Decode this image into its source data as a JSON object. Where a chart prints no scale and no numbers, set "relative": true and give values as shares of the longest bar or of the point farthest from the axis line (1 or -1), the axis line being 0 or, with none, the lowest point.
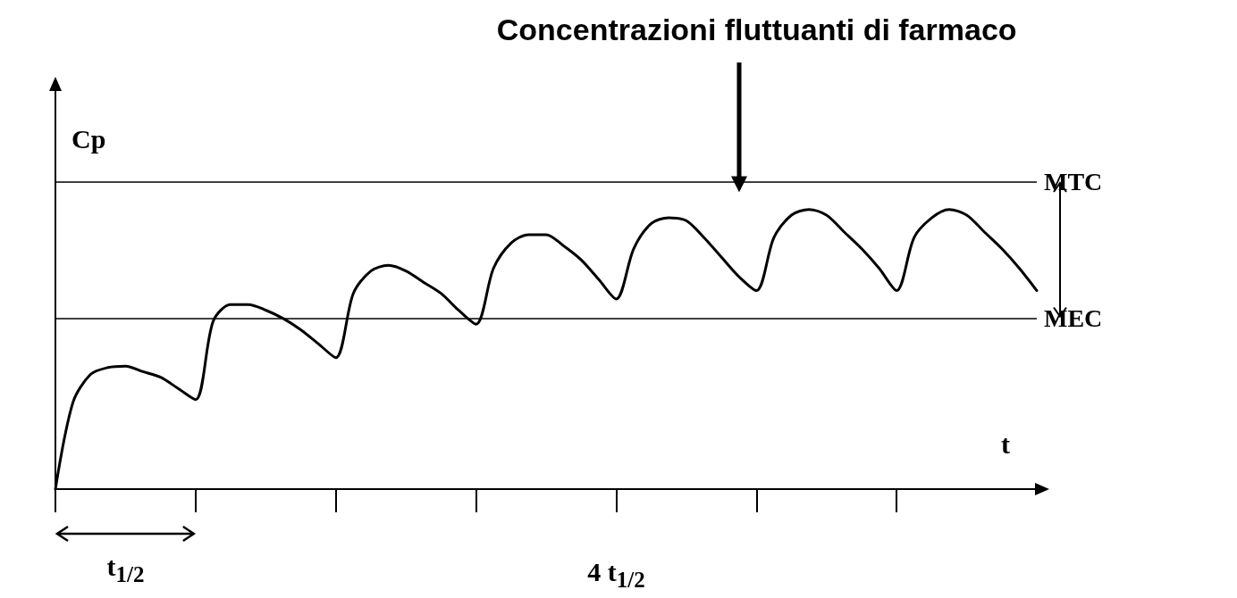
{
  "chart_data": {
    "type": "line",
    "relative": true,
    "xlabel": "t",
    "ylabel": "Cp",
    "color": "#000000",
    "marker": "none",
    "grid": false,
    "categories": [
      null,
      null,
      null,
      null,
      null,
      null,
      null,
      null,
      null,
      null,
      null,
      null,
      null,
      null,
      null,
      null,
      null,
      null,
      null,
      null,
      null,
      null,
      null,
      null,
      null,
      null,
      null,
      null,
      null,
      null,
      null,
      null,
      null,
      null,
      null,
      null,
      null,
      null,
      null,
      null,
      null,
      null,
      null,
      null,
      null,
      null,
      null,
      null,
      null,
      null,
      null,
      null,
      null,
      null,
      null,
      null,
      null
    ],
    "values": [
      0,
      0.31,
      0.41,
      0.435,
      0.44,
      0.42,
      0.4,
      0.36,
      0.32,
      0.6,
      0.66,
      0.66,
      0.64,
      0.61,
      0.57,
      0.52,
      0.47,
      0.7,
      0.78,
      0.8,
      0.78,
      0.74,
      0.7,
      0.64,
      0.59,
      0.79,
      0.88,
      0.91,
      0.91,
      0.87,
      0.82,
      0.75,
      0.68,
      0.86,
      0.95,
      0.97,
      0.96,
      0.9,
      0.83,
      0.76,
      0.71,
      0.9,
      0.98,
      1,
      0.98,
      0.92,
      0.86,
      0.79,
      0.71,
      0.9,
      0.97,
      1,
      0.98,
      0.92,
      0.86,
      0.79,
      0.71
    ],
    "ref_lines": [
      {
        "axis": "y",
        "value": 1.1,
        "label": "MTC",
        "color": "#000000"
      },
      {
        "axis": "y",
        "value": 0.61,
        "label": "MEC",
        "color": "#000000"
      }
    ],
    "annotations": [
      "Concentrazioni fluttuanti di farmaco",
      "t$_{1/2}$",
      "4 t$_{1/2}$"
    ]
  }
}
